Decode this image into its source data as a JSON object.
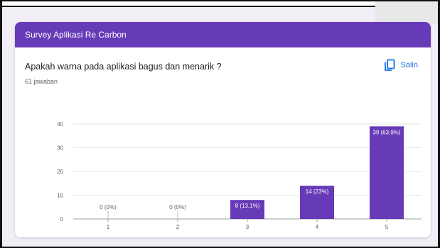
{
  "card": {
    "title": "Survey Aplikasi Re Carbon",
    "question": "Apakah warna pada aplikasi bagus dan menarik ?",
    "responses": "61 jawaban",
    "copy_label": "Salin"
  },
  "colors": {
    "accent": "#673ab7",
    "bar": "#673ab7",
    "link": "#1a73e8"
  },
  "chart_data": {
    "type": "bar",
    "categories": [
      "1",
      "2",
      "3",
      "4",
      "5"
    ],
    "values": [
      0,
      0,
      8,
      14,
      39
    ],
    "data_labels": [
      "0 (0%)",
      "0 (0%)",
      "8 (13,1%)",
      "14 (23%)",
      "39 (63,9%)"
    ],
    "y_ticks": [
      0,
      10,
      20,
      30,
      40
    ],
    "ylim": [
      0,
      40
    ],
    "grid": true,
    "legend": "none"
  }
}
